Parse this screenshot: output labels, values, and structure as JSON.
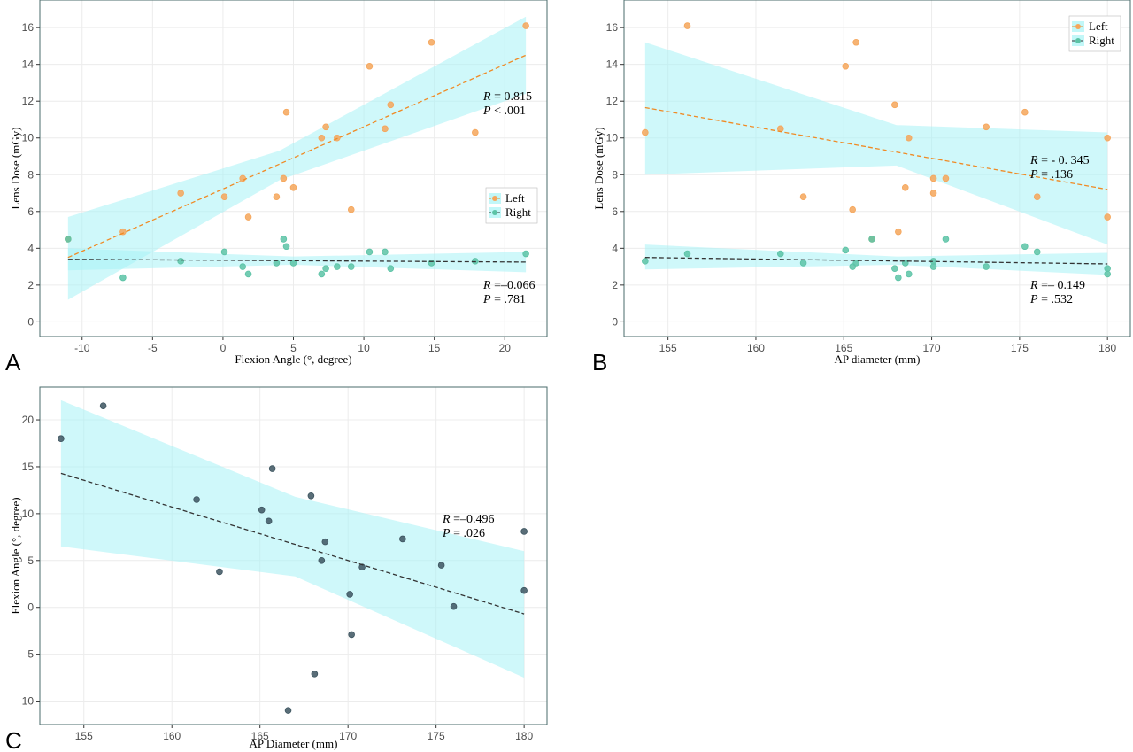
{
  "chart_data": [
    {
      "panel": "A",
      "type": "scatter",
      "xlabel": "Flexion Angle (°, degree)",
      "ylabel": "Lens Dose (mGy)",
      "xlim": [
        -13,
        23
      ],
      "ylim": [
        -0.8,
        17.5
      ],
      "xticks": [
        -10,
        -5,
        0,
        5,
        10,
        15,
        20
      ],
      "yticks": [
        0,
        2,
        4,
        6,
        8,
        10,
        12,
        14,
        16
      ],
      "grid": true,
      "legend": {
        "position": "right",
        "entries": [
          "Left",
          "Right"
        ]
      },
      "series": [
        {
          "name": "Left",
          "color": "#f5a65b",
          "points": [
            [
              -11,
              4.5
            ],
            [
              -7.1,
              4.9
            ],
            [
              -3,
              7
            ],
            [
              0.1,
              6.8
            ],
            [
              1.4,
              7.8
            ],
            [
              1.8,
              5.7
            ],
            [
              3.8,
              6.8
            ],
            [
              4.3,
              7.8
            ],
            [
              4.5,
              11.4
            ],
            [
              5,
              7.3
            ],
            [
              7,
              10
            ],
            [
              7.3,
              10.6
            ],
            [
              8.1,
              10
            ],
            [
              9.1,
              6.1
            ],
            [
              10.4,
              13.9
            ],
            [
              11.5,
              10.5
            ],
            [
              11.9,
              11.8
            ],
            [
              14.8,
              15.2
            ],
            [
              17.9,
              10.3
            ],
            [
              21.5,
              16.1
            ]
          ],
          "fit": {
            "from": [
              -11,
              3.5
            ],
            "to": [
              21.5,
              14.5
            ],
            "band": [
              [
                -11,
                1.2,
                5.7
              ],
              [
                4,
                7.7,
                9.3
              ],
              [
                21.5,
                12.4,
                16.6
              ]
            ]
          },
          "annotation": {
            "r_label": "R",
            "r_value": "= 0.815",
            "p_label": "P",
            "p_value": "<   .001"
          }
        },
        {
          "name": "Right",
          "color": "#5cc3a6",
          "points": [
            [
              -11,
              4.5
            ],
            [
              -7.1,
              2.4
            ],
            [
              -3,
              3.3
            ],
            [
              0.1,
              3.8
            ],
            [
              1.4,
              3
            ],
            [
              1.8,
              2.6
            ],
            [
              3.8,
              3.2
            ],
            [
              4.3,
              4.5
            ],
            [
              4.5,
              4.1
            ],
            [
              5,
              3.2
            ],
            [
              7,
              2.6
            ],
            [
              7.3,
              2.9
            ],
            [
              8.1,
              3
            ],
            [
              9.1,
              3
            ],
            [
              10.4,
              3.8
            ],
            [
              11.5,
              3.8
            ],
            [
              11.9,
              2.9
            ],
            [
              14.8,
              3.2
            ],
            [
              17.9,
              3.3
            ],
            [
              21.5,
              3.7
            ]
          ],
          "fit": {
            "from": [
              -11,
              3.4
            ],
            "to": [
              21.5,
              3.25
            ],
            "band": [
              [
                -11,
                2.8,
                4
              ],
              [
                5,
                3.1,
                3.55
              ],
              [
                21.5,
                2.7,
                3.8
              ]
            ]
          },
          "annotation": {
            "r_label": "R",
            "r_value": "=–0.066",
            "p_label": "P",
            "p_value": "=   .781"
          }
        }
      ]
    },
    {
      "panel": "B",
      "type": "scatter",
      "xlabel": "AP diameter (mm)",
      "ylabel": "Lens Dose (mGy)",
      "xlim": [
        152.5,
        181.3
      ],
      "ylim": [
        -0.8,
        17.5
      ],
      "xticks": [
        155,
        160,
        165,
        170,
        175,
        180
      ],
      "yticks": [
        0,
        2,
        4,
        6,
        8,
        10,
        12,
        14,
        16
      ],
      "grid": true,
      "legend": {
        "position": "top-right",
        "entries": [
          "Left",
          "Right"
        ]
      },
      "series": [
        {
          "name": "Left",
          "color": "#f5a65b",
          "points": [
            [
              153.7,
              10.3
            ],
            [
              156.1,
              16.1
            ],
            [
              161.4,
              10.5
            ],
            [
              162.7,
              6.8
            ],
            [
              165.1,
              13.9
            ],
            [
              165.5,
              6.1
            ],
            [
              165.7,
              15.2
            ],
            [
              166.6,
              4.5
            ],
            [
              167.9,
              11.8
            ],
            [
              168.1,
              4.9
            ],
            [
              168.5,
              7.3
            ],
            [
              168.7,
              10
            ],
            [
              170.1,
              7
            ],
            [
              170.1,
              7.8
            ],
            [
              170.8,
              7.8
            ],
            [
              173.1,
              10.6
            ],
            [
              175.3,
              11.4
            ],
            [
              176,
              6.8
            ],
            [
              180,
              10
            ],
            [
              180,
              5.7
            ]
          ],
          "fit": {
            "from": [
              153.7,
              11.65
            ],
            "to": [
              180,
              7.2
            ],
            "band": [
              [
                153.7,
                8,
                15.2
              ],
              [
                168,
                8.5,
                10.7
              ],
              [
                180,
                4.2,
                10.3
              ]
            ]
          },
          "annotation": {
            "r_label": "R",
            "r_value": "= - 0. 345",
            "p_label": "P",
            "p_value": "=    .136"
          }
        },
        {
          "name": "Right",
          "color": "#5cc3a6",
          "points": [
            [
              153.7,
              3.3
            ],
            [
              156.1,
              3.7
            ],
            [
              161.4,
              3.7
            ],
            [
              162.7,
              3.2
            ],
            [
              165.1,
              3.9
            ],
            [
              165.5,
              3
            ],
            [
              165.7,
              3.2
            ],
            [
              166.6,
              4.5
            ],
            [
              167.9,
              2.9
            ],
            [
              168.1,
              2.4
            ],
            [
              168.5,
              3.2
            ],
            [
              168.7,
              2.6
            ],
            [
              170.1,
              3.3
            ],
            [
              170.1,
              3
            ],
            [
              170.8,
              4.5
            ],
            [
              173.1,
              3
            ],
            [
              175.3,
              4.1
            ],
            [
              176,
              3.8
            ],
            [
              180,
              2.9
            ],
            [
              180,
              2.6
            ]
          ],
          "fit": {
            "from": [
              153.7,
              3.5
            ],
            "to": [
              180,
              3.15
            ],
            "band": [
              [
                153.7,
                2.85,
                4.2
              ],
              [
                168,
                3.1,
                3.55
              ],
              [
                180,
                2.55,
                3.75
              ]
            ]
          },
          "annotation": {
            "r_label": "R",
            "r_value": "=– 0.149",
            "p_label": "P",
            "p_value": "=    .532"
          }
        }
      ]
    },
    {
      "panel": "C",
      "type": "scatter",
      "xlabel": "AP Diameter (mm)",
      "ylabel": "Flexion Angle (°, degree)",
      "xlim": [
        152.5,
        181.3
      ],
      "ylim": [
        -12.5,
        23.5
      ],
      "xticks": [
        155,
        160,
        165,
        170,
        175,
        180
      ],
      "yticks": [
        -10,
        -5,
        0,
        5,
        10,
        15,
        20
      ],
      "grid": true,
      "series": [
        {
          "name": "",
          "color": "#3d5560",
          "points": [
            [
              153.7,
              18
            ],
            [
              156.1,
              21.5
            ],
            [
              161.4,
              11.5
            ],
            [
              162.7,
              3.8
            ],
            [
              165.1,
              10.4
            ],
            [
              165.5,
              9.2
            ],
            [
              165.7,
              14.8
            ],
            [
              166.6,
              -11
            ],
            [
              167.9,
              11.9
            ],
            [
              168.1,
              -7.1
            ],
            [
              168.5,
              5
            ],
            [
              168.7,
              7
            ],
            [
              170.1,
              1.4
            ],
            [
              170.2,
              -2.9
            ],
            [
              170.8,
              4.3
            ],
            [
              173.1,
              7.3
            ],
            [
              175.3,
              4.5
            ],
            [
              176,
              0.1
            ],
            [
              180,
              8.1
            ],
            [
              180,
              1.8
            ]
          ],
          "fit": {
            "from": [
              153.7,
              14.3
            ],
            "to": [
              180,
              -0.7
            ],
            "band": [
              [
                153.7,
                6.5,
                22.1
              ],
              [
                167,
                3.3,
                11.8
              ],
              [
                180,
                -7.5,
                6
              ]
            ]
          },
          "annotation": {
            "r_label": "R",
            "r_value": "=–0.496",
            "p_label": "P",
            "p_value": "=    .026"
          }
        }
      ]
    }
  ]
}
